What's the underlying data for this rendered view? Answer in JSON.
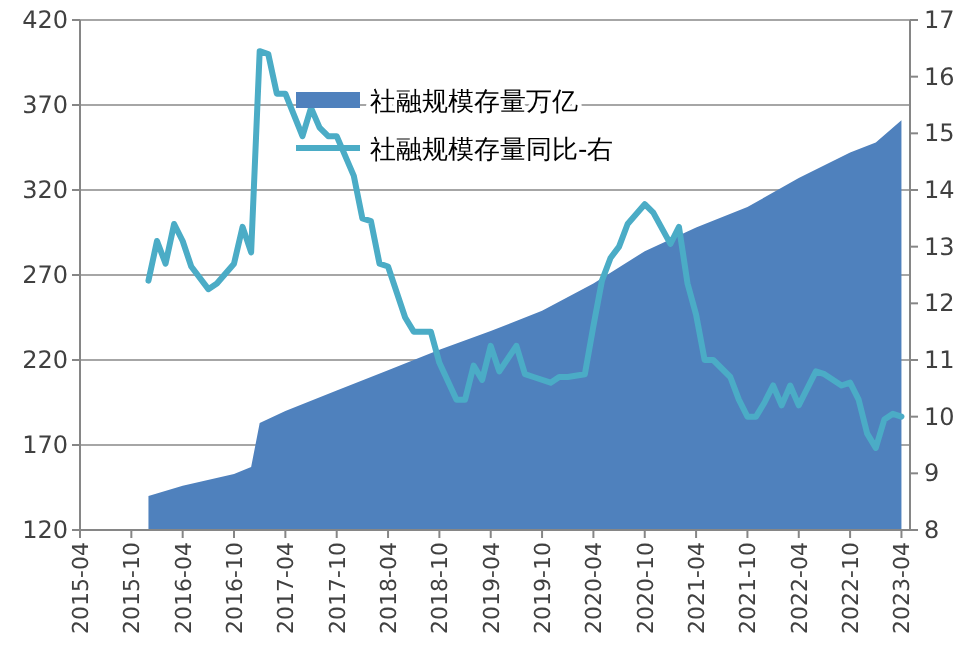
{
  "chart_data": {
    "type": "area",
    "xlim": [
      "2015-04",
      "2023-05"
    ],
    "xticks": [
      "2015-04",
      "2015-10",
      "2016-04",
      "2016-10",
      "2017-04",
      "2017-10",
      "2018-04",
      "2018-10",
      "2019-04",
      "2019-10",
      "2020-04",
      "2020-10",
      "2021-04",
      "2021-10",
      "2022-04",
      "2022-10",
      "2023-04"
    ],
    "ylim": [
      120,
      420
    ],
    "yticks": [
      120,
      170,
      220,
      270,
      320,
      370,
      420
    ],
    "y2lim": [
      8,
      17
    ],
    "y2ticks": [
      8,
      9,
      10,
      11,
      12,
      13,
      14,
      15,
      16,
      17
    ],
    "grid": "y",
    "legend": "top",
    "series": [
      {
        "name": "社融规模存量万亿",
        "color": "#4f81bd",
        "x": [
          "2015-12",
          "2016-04",
          "2016-10",
          "2016-12",
          "2017-01",
          "2017-04",
          "2017-10",
          "2018-04",
          "2018-10",
          "2019-04",
          "2019-10",
          "2020-04",
          "2020-10",
          "2021-04",
          "2021-10",
          "2022-04",
          "2022-10",
          "2023-01",
          "2023-04"
        ],
        "values": [
          140,
          146,
          153,
          157,
          183,
          190,
          202,
          214,
          226,
          237,
          249,
          265,
          284,
          298,
          310,
          327,
          342,
          348,
          361
        ]
      },
      {
        "name": "社融规模存量同比-右",
        "type": "line",
        "axis": "y2",
        "color": "#4bacc6",
        "x": [
          "2015-12",
          "2016-01",
          "2016-02",
          "2016-03",
          "2016-04",
          "2016-05",
          "2016-07",
          "2016-08",
          "2016-10",
          "2016-11",
          "2016-12",
          "2017-01",
          "2017-02",
          "2017-03",
          "2017-04",
          "2017-06",
          "2017-07",
          "2017-08",
          "2017-09",
          "2017-10",
          "2017-12",
          "2018-01",
          "2018-02",
          "2018-03",
          "2018-04",
          "2018-06",
          "2018-07",
          "2018-09",
          "2018-10",
          "2018-12",
          "2019-01",
          "2019-02",
          "2019-03",
          "2019-04",
          "2019-05",
          "2019-07",
          "2019-08",
          "2019-09",
          "2019-11",
          "2019-12",
          "2020-01",
          "2020-03",
          "2020-04",
          "2020-05",
          "2020-06",
          "2020-07",
          "2020-08",
          "2020-10",
          "2020-11",
          "2021-01",
          "2021-02",
          "2021-03",
          "2021-04",
          "2021-05",
          "2021-06",
          "2021-08",
          "2021-09",
          "2021-10",
          "2021-11",
          "2021-12",
          "2022-01",
          "2022-02",
          "2022-03",
          "2022-04",
          "2022-06",
          "2022-07",
          "2022-09",
          "2022-10",
          "2022-11",
          "2022-12",
          "2023-01",
          "2023-02",
          "2023-03",
          "2023-04"
        ],
        "values": [
          12.4,
          13.1,
          12.7,
          13.4,
          13.1,
          12.65,
          12.25,
          12.35,
          12.7,
          13.35,
          12.9,
          16.45,
          16.4,
          15.7,
          15.7,
          14.95,
          15.45,
          15.1,
          14.95,
          14.95,
          14.25,
          13.5,
          13.45,
          12.7,
          12.65,
          11.75,
          11.5,
          11.5,
          10.95,
          10.3,
          10.3,
          10.9,
          10.65,
          11.25,
          10.8,
          11.25,
          10.75,
          10.7,
          10.6,
          10.7,
          10.7,
          10.75,
          11.6,
          12.4,
          12.8,
          13.0,
          13.4,
          13.75,
          13.6,
          13.05,
          13.35,
          12.35,
          11.8,
          11.0,
          11.0,
          10.7,
          10.3,
          10.0,
          10.0,
          10.25,
          10.55,
          10.2,
          10.55,
          10.2,
          10.8,
          10.75,
          10.55,
          10.6,
          10.3,
          9.7,
          9.45,
          9.95,
          10.05,
          10.0
        ]
      }
    ]
  }
}
